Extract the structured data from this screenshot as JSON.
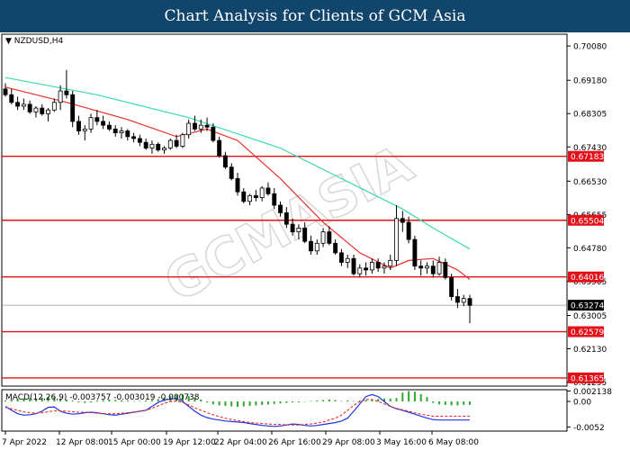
{
  "header": {
    "title": "Chart Analysis for Clients of GCM Asia"
  },
  "chart_data": {
    "type": "candlestick",
    "symbol": "NZDUSD,H4",
    "watermark": "GCMASIA",
    "price_axis": {
      "ylim": [
        0.6115,
        0.7039
      ],
      "ticks": [
        "0.70080",
        "0.69180",
        "0.68305",
        "0.67430",
        "0.66530",
        "0.65655",
        "0.64780",
        "0.63905",
        "0.63005",
        "0.62130",
        "0.61255"
      ]
    },
    "current_price": {
      "value": 0.63274,
      "label": "0.63274"
    },
    "horizontal_levels": [
      {
        "value": 0.67183,
        "label": "0.67183"
      },
      {
        "value": 0.65504,
        "label": "0.65504"
      },
      {
        "value": 0.64016,
        "label": "0.64016"
      },
      {
        "value": 0.62579,
        "label": "0.62579"
      },
      {
        "value": 0.61365,
        "label": "0.61365"
      }
    ],
    "x_labels": [
      "7 Apr 2022",
      "12 Apr 08:00",
      "15 Apr 00:00",
      "19 Apr 12:00",
      "22 Apr 04:00",
      "26 Apr 16:00",
      "29 Apr 08:00",
      "3 May 16:00",
      "6 May 08:00"
    ],
    "candles": [
      [
        0.6895,
        0.691,
        0.6875,
        0.688
      ],
      [
        0.688,
        0.6895,
        0.6855,
        0.686
      ],
      [
        0.686,
        0.6875,
        0.684,
        0.685
      ],
      [
        0.685,
        0.687,
        0.684,
        0.6855
      ],
      [
        0.6855,
        0.6865,
        0.683,
        0.6835
      ],
      [
        0.6835,
        0.685,
        0.682,
        0.6845
      ],
      [
        0.6845,
        0.6855,
        0.6825,
        0.683
      ],
      [
        0.683,
        0.6845,
        0.681,
        0.684
      ],
      [
        0.684,
        0.687,
        0.6835,
        0.686
      ],
      [
        0.686,
        0.6905,
        0.684,
        0.689
      ],
      [
        0.689,
        0.6945,
        0.687,
        0.688
      ],
      [
        0.688,
        0.689,
        0.6795,
        0.681
      ],
      [
        0.681,
        0.6825,
        0.6775,
        0.6785
      ],
      [
        0.6785,
        0.68,
        0.676,
        0.679
      ],
      [
        0.679,
        0.683,
        0.678,
        0.682
      ],
      [
        0.682,
        0.684,
        0.68,
        0.681
      ],
      [
        0.681,
        0.6825,
        0.679,
        0.68
      ],
      [
        0.68,
        0.681,
        0.6785,
        0.679
      ],
      [
        0.679,
        0.68,
        0.677,
        0.678
      ],
      [
        0.678,
        0.6795,
        0.6765,
        0.6785
      ],
      [
        0.6785,
        0.679,
        0.676,
        0.677
      ],
      [
        0.677,
        0.678,
        0.6755,
        0.6765
      ],
      [
        0.6765,
        0.6775,
        0.6745,
        0.6755
      ],
      [
        0.6755,
        0.6765,
        0.6735,
        0.674
      ],
      [
        0.674,
        0.676,
        0.6725,
        0.675
      ],
      [
        0.675,
        0.6755,
        0.673,
        0.6735
      ],
      [
        0.6735,
        0.6745,
        0.6725,
        0.674
      ],
      [
        0.674,
        0.6765,
        0.6735,
        0.676
      ],
      [
        0.676,
        0.6775,
        0.674,
        0.6745
      ],
      [
        0.6745,
        0.678,
        0.674,
        0.6775
      ],
      [
        0.6775,
        0.6815,
        0.6765,
        0.6805
      ],
      [
        0.6805,
        0.6825,
        0.6785,
        0.679
      ],
      [
        0.679,
        0.6815,
        0.678,
        0.68
      ],
      [
        0.68,
        0.682,
        0.6785,
        0.6795
      ],
      [
        0.6795,
        0.6805,
        0.6755,
        0.676
      ],
      [
        0.676,
        0.677,
        0.6715,
        0.672
      ],
      [
        0.672,
        0.673,
        0.6685,
        0.669
      ],
      [
        0.669,
        0.67,
        0.6655,
        0.666
      ],
      [
        0.666,
        0.6675,
        0.6615,
        0.6625
      ],
      [
        0.6625,
        0.6635,
        0.6595,
        0.66
      ],
      [
        0.66,
        0.662,
        0.659,
        0.6615
      ],
      [
        0.6615,
        0.663,
        0.66,
        0.661
      ],
      [
        0.661,
        0.664,
        0.66,
        0.6635
      ],
      [
        0.6635,
        0.665,
        0.6615,
        0.662
      ],
      [
        0.662,
        0.6635,
        0.658,
        0.659
      ],
      [
        0.659,
        0.66,
        0.656,
        0.657
      ],
      [
        0.657,
        0.6585,
        0.653,
        0.654
      ],
      [
        0.654,
        0.6555,
        0.651,
        0.652
      ],
      [
        0.652,
        0.654,
        0.65,
        0.653
      ],
      [
        0.653,
        0.6545,
        0.649,
        0.6495
      ],
      [
        0.6495,
        0.651,
        0.646,
        0.647
      ],
      [
        0.647,
        0.65,
        0.646,
        0.649
      ],
      [
        0.649,
        0.653,
        0.648,
        0.652
      ],
      [
        0.652,
        0.6535,
        0.6485,
        0.649
      ],
      [
        0.649,
        0.65,
        0.646,
        0.6465
      ],
      [
        0.6465,
        0.6475,
        0.643,
        0.644
      ],
      [
        0.644,
        0.646,
        0.6425,
        0.645
      ],
      [
        0.645,
        0.646,
        0.6405,
        0.641
      ],
      [
        0.641,
        0.6435,
        0.64,
        0.6425
      ],
      [
        0.6425,
        0.644,
        0.6405,
        0.642
      ],
      [
        0.642,
        0.645,
        0.641,
        0.644
      ],
      [
        0.644,
        0.645,
        0.6415,
        0.6425
      ],
      [
        0.6425,
        0.644,
        0.641,
        0.643
      ],
      [
        0.643,
        0.646,
        0.642,
        0.6445
      ],
      [
        0.6445,
        0.659,
        0.643,
        0.6555
      ],
      [
        0.6555,
        0.6575,
        0.652,
        0.6545
      ],
      [
        0.6545,
        0.656,
        0.649,
        0.65
      ],
      [
        0.65,
        0.651,
        0.642,
        0.643
      ],
      [
        0.643,
        0.6445,
        0.6405,
        0.6425
      ],
      [
        0.6425,
        0.644,
        0.641,
        0.643
      ],
      [
        0.643,
        0.6445,
        0.64,
        0.641
      ],
      [
        0.641,
        0.6455,
        0.6405,
        0.644
      ],
      [
        0.644,
        0.645,
        0.6395,
        0.64
      ],
      [
        0.64,
        0.641,
        0.634,
        0.635
      ],
      [
        0.635,
        0.637,
        0.632,
        0.6335
      ],
      [
        0.6335,
        0.6355,
        0.6325,
        0.6345
      ],
      [
        0.6345,
        0.6355,
        0.628,
        0.6327
      ]
    ],
    "moving_averages": [
      {
        "color": "#3cd9b0",
        "points": [
          [
            0,
            0.6925
          ],
          [
            15,
            0.688
          ],
          [
            30,
            0.682
          ],
          [
            45,
            0.674
          ],
          [
            55,
            0.666
          ],
          [
            65,
            0.658
          ],
          [
            70,
            0.653
          ],
          [
            76,
            0.6475
          ]
        ]
      },
      {
        "color": "#e8302a",
        "points": [
          [
            0,
            0.69
          ],
          [
            10,
            0.686
          ],
          [
            20,
            0.6815
          ],
          [
            28,
            0.677
          ],
          [
            33,
            0.679
          ],
          [
            38,
            0.676
          ],
          [
            45,
            0.666
          ],
          [
            52,
            0.6545
          ],
          [
            58,
            0.6465
          ],
          [
            63,
            0.6425
          ],
          [
            66,
            0.6445
          ],
          [
            70,
            0.645
          ],
          [
            74,
            0.642
          ],
          [
            76,
            0.6395
          ]
        ]
      }
    ],
    "macd": {
      "label": "MACD(12,26,9) -0.003757 -0.003019 -0.000738",
      "ylim": [
        -0.0055,
        0.0024
      ],
      "ticks": [
        "0.002138",
        "0.00",
        "-0.0052"
      ],
      "histogram": [
        0.0002,
        0.0004,
        0.0005,
        0.0006,
        0.0007,
        0.0006,
        0.0008,
        0.001,
        0.0009,
        0.0006,
        0.0004,
        0.0002,
        -0.0002,
        -0.0003,
        -0.0002,
        0.0002,
        0.0003,
        0.0004,
        0.0003,
        0.0002,
        0.0002,
        0.0001,
        0.0001,
        0.0002,
        0.0003,
        0.0005,
        0.0008,
        0.0011,
        0.0013,
        0.0014,
        0.0011,
        0.0008,
        0.0004,
        -0.0002,
        -0.0006,
        -0.0008,
        -0.0009,
        -0.001,
        -0.0011,
        -0.001,
        -0.0009,
        -0.0008,
        -0.0007,
        -0.0006,
        -0.0005,
        -0.0004,
        -0.0003,
        -0.0002,
        -0.0002,
        -0.0001,
        0.0001,
        0.0002,
        0.0003,
        0.0004,
        0.0003,
        0.0001,
        0.0002,
        0.0001,
        0.0002,
        0.0003,
        0.0004,
        0.0005,
        0.0006,
        0.0006,
        0.0007,
        0.0018,
        0.0021,
        0.002,
        0.0015,
        0.0009,
        -0.0003,
        -0.0006,
        -0.0007,
        -0.0008,
        -0.0008,
        -0.0007,
        -0.0007
      ],
      "macd_line": [
        -0.001,
        -0.0018,
        -0.0025,
        -0.0028,
        -0.0027,
        -0.0025,
        -0.002,
        -0.0012,
        -0.0011,
        -0.002,
        -0.0024,
        -0.0026,
        -0.0025,
        -0.0023,
        -0.0022,
        -0.0023,
        -0.0025,
        -0.0027,
        -0.0028,
        -0.0026,
        -0.0024,
        -0.0022,
        -0.002,
        -0.0018,
        -0.001,
        -0.0002,
        0.0003,
        0.0005,
        0.0006,
        0.0,
        -0.001,
        -0.002,
        -0.0028,
        -0.0033,
        -0.0036,
        -0.0038,
        -0.004,
        -0.0041,
        -0.0042,
        -0.0043,
        -0.0045,
        -0.0047,
        -0.0049,
        -0.005,
        -0.0051,
        -0.005,
        -0.0048,
        -0.0046,
        -0.0047,
        -0.0049,
        -0.005,
        -0.0049,
        -0.0047,
        -0.0045,
        -0.0043,
        -0.004,
        -0.0034,
        -0.002,
        -0.0005,
        0.001,
        0.0014,
        0.001,
        0.0,
        -0.001,
        -0.0015,
        -0.0018,
        -0.0022,
        -0.0026,
        -0.003,
        -0.0034,
        -0.0037,
        -0.0038,
        -0.0038,
        -0.0038,
        -0.0038,
        -0.0038,
        -0.0038
      ],
      "signal_line": [
        -0.0012,
        -0.0015,
        -0.0018,
        -0.0021,
        -0.0023,
        -0.0024,
        -0.0023,
        -0.0021,
        -0.0019,
        -0.0019,
        -0.002,
        -0.0021,
        -0.0022,
        -0.0022,
        -0.0023,
        -0.0024,
        -0.0025,
        -0.0025,
        -0.0025,
        -0.0024,
        -0.0023,
        -0.0022,
        -0.002,
        -0.0018,
        -0.0014,
        -0.0009,
        -0.0004,
        0.0,
        0.0001,
        -0.0002,
        -0.0007,
        -0.0013,
        -0.0018,
        -0.0023,
        -0.0027,
        -0.0031,
        -0.0034,
        -0.0037,
        -0.0039,
        -0.0041,
        -0.0043,
        -0.0044,
        -0.0045,
        -0.0046,
        -0.0047,
        -0.0047,
        -0.0048,
        -0.0048,
        -0.0048,
        -0.0047,
        -0.0046,
        -0.0044,
        -0.0042,
        -0.0038,
        -0.0034,
        -0.0028,
        -0.0018,
        -0.0008,
        0.0,
        0.0004,
        0.0004,
        0.0,
        -0.0005,
        -0.001,
        -0.0014,
        -0.0017,
        -0.002,
        -0.0023,
        -0.0026,
        -0.0028,
        -0.003,
        -0.003,
        -0.003,
        -0.003,
        -0.003,
        -0.003,
        -0.003
      ],
      "colors": {
        "histogram": "#2ea82e",
        "macd": "#2233dd",
        "signal": "#e8302a"
      }
    },
    "colors": {
      "bull_body": "#ffffff",
      "bear_body": "#000000",
      "level": "#e3101a",
      "current": "#8a9aa6",
      "grid": "#e8e8e8"
    }
  }
}
